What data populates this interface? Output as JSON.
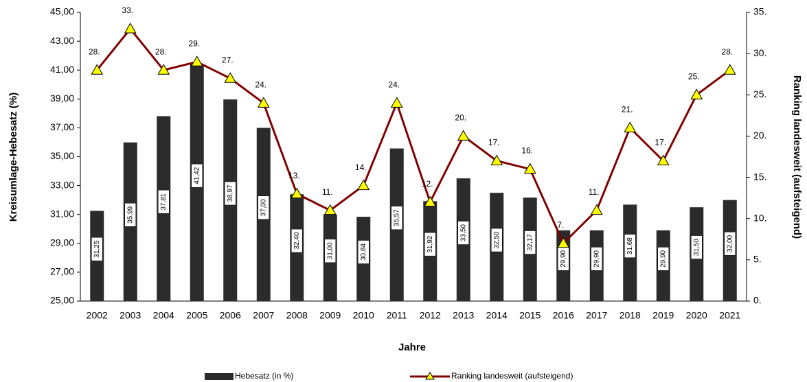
{
  "chart_data": {
    "type": "bar",
    "categories": [
      "2002",
      "2003",
      "2004",
      "2005",
      "2006",
      "2007",
      "2008",
      "2009",
      "2010",
      "2011",
      "2012",
      "2013",
      "2014",
      "2015",
      "2016",
      "2017",
      "2018",
      "2019",
      "2020",
      "2021"
    ],
    "series": [
      {
        "name": "Hebesatz (in %)",
        "type": "bar",
        "color": "#2b2b2b",
        "values": [
          31.25,
          35.99,
          37.81,
          41.42,
          38.97,
          37.0,
          32.4,
          31.0,
          30.84,
          35.57,
          31.92,
          33.5,
          32.5,
          32.17,
          29.9,
          29.9,
          31.68,
          29.9,
          31.5,
          32.0
        ],
        "value_labels": [
          "31,25",
          "35,99",
          "37,81",
          "41,42",
          "38,97",
          "37,00",
          "32,40",
          "31,00",
          "30,84",
          "35,57",
          "31,92",
          "33,50",
          "32,50",
          "32,17",
          "29,90",
          "29,90",
          "31,68",
          "29,90",
          "31,50",
          "32,00"
        ]
      },
      {
        "name": "Ranking landesweit (aufsteigend)",
        "type": "line",
        "axis": "y2",
        "color": "#800000",
        "marker_color": "#ffff00",
        "values": [
          28,
          33,
          28,
          29,
          27,
          24,
          13,
          11,
          14,
          24,
          12,
          20,
          17,
          16,
          7,
          11,
          21,
          17,
          25,
          28
        ],
        "value_labels": [
          "28.",
          "33.",
          "28.",
          "29.",
          "27.",
          "24.",
          "13.",
          "11.",
          "14.",
          "24.",
          "12.",
          "20.",
          "17.",
          "16.",
          "7.",
          "11.",
          "21.",
          "17.",
          "25.",
          "28."
        ]
      }
    ],
    "x_label": "Jahre",
    "y_label": "Kreisumlage-Hebesatz (%)",
    "y2_label": "Ranking landesweit (aufsteigend)",
    "ylim": [
      25,
      45
    ],
    "yticks": [
      {
        "value": 25,
        "label": "25,00"
      },
      {
        "value": 27,
        "label": "27,00"
      },
      {
        "value": 29,
        "label": "29,00"
      },
      {
        "value": 31,
        "label": "31,00"
      },
      {
        "value": 33,
        "label": "33,00"
      },
      {
        "value": 35,
        "label": "35,00"
      },
      {
        "value": 37,
        "label": "37,00"
      },
      {
        "value": 39,
        "label": "39,00"
      },
      {
        "value": 41,
        "label": "41,00"
      },
      {
        "value": 43,
        "label": "43,00"
      },
      {
        "value": 45,
        "label": "45,00"
      }
    ],
    "y2lim": [
      0,
      35
    ],
    "y2ticks": [
      {
        "value": 0,
        "label": "0."
      },
      {
        "value": 5,
        "label": "5."
      },
      {
        "value": 10,
        "label": "10."
      },
      {
        "value": 15,
        "label": "15."
      },
      {
        "value": 20,
        "label": "20."
      },
      {
        "value": 25,
        "label": "25."
      },
      {
        "value": 30,
        "label": "30."
      },
      {
        "value": 35,
        "label": "35."
      }
    ],
    "legend": "bottom"
  }
}
